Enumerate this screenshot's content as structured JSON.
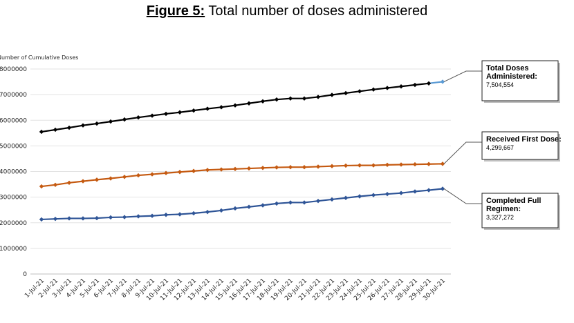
{
  "figure": {
    "label": "Figure 5:",
    "title": " Total number of doses administered"
  },
  "chart_data": {
    "type": "line",
    "ylabel": "Number of Cumulative Doses",
    "ylim": [
      0,
      8000000
    ],
    "yticks": [
      "0",
      "1000000",
      "2000000",
      "3000000",
      "4000000",
      "5000000",
      "6000000",
      "7000000",
      "8000000"
    ],
    "grid": true,
    "x": [
      "1-Jul-21",
      "2-Jul-21",
      "3-Jul-21",
      "4-Jul-21",
      "5-Jul-21",
      "6-Jul-21",
      "7-Jul-21",
      "8-Jul-21",
      "9-Jul-21",
      "10-Jul-21",
      "11-Jul-21",
      "12-Jul-21",
      "13-Jul-21",
      "14-Jul-21",
      "15-Jul-21",
      "16-Jul-21",
      "17-Jul-21",
      "18-Jul-21",
      "19-Jul-21",
      "20-Jul-21",
      "21-Jul-21",
      "22-Jul-21",
      "23-Jul-21",
      "24-Jul-21",
      "25-Jul-21",
      "26-Jul-21",
      "27-Jul-21",
      "28-Jul-21",
      "29-Jul-21",
      "30-Jul-21"
    ],
    "series": [
      {
        "color": "#000000",
        "last_point_color": "#5b9bd5",
        "values": [
          5550000,
          5630000,
          5710000,
          5800000,
          5870000,
          5950000,
          6030000,
          6110000,
          6180000,
          6250000,
          6310000,
          6380000,
          6450000,
          6510000,
          6580000,
          6660000,
          6740000,
          6810000,
          6850000,
          6850000,
          6910000,
          6990000,
          7060000,
          7130000,
          7200000,
          7260000,
          7320000,
          7380000,
          7440000,
          7504554
        ]
      },
      {
        "color": "#c55a11",
        "values": [
          3420000,
          3480000,
          3560000,
          3620000,
          3680000,
          3730000,
          3790000,
          3850000,
          3890000,
          3940000,
          3980000,
          4020000,
          4060000,
          4080000,
          4100000,
          4120000,
          4140000,
          4160000,
          4170000,
          4170000,
          4190000,
          4210000,
          4230000,
          4240000,
          4240000,
          4260000,
          4270000,
          4280000,
          4290000,
          4299667
        ]
      },
      {
        "color": "#2f5597",
        "values": [
          2130000,
          2150000,
          2170000,
          2170000,
          2180000,
          2210000,
          2220000,
          2250000,
          2270000,
          2310000,
          2330000,
          2370000,
          2420000,
          2480000,
          2560000,
          2620000,
          2680000,
          2750000,
          2790000,
          2790000,
          2850000,
          2910000,
          2970000,
          3030000,
          3080000,
          3120000,
          3160000,
          3220000,
          3270000,
          3327272
        ]
      }
    ],
    "callouts": [
      {
        "title_lines": [
          "Total Doses",
          "Administered:"
        ],
        "value": "7,504,554"
      },
      {
        "title_lines": [
          "Received First Dose:"
        ],
        "value": "4,299,667"
      },
      {
        "title_lines": [
          "Completed Full",
          "Regimen:"
        ],
        "value": "3,327,272"
      }
    ]
  }
}
